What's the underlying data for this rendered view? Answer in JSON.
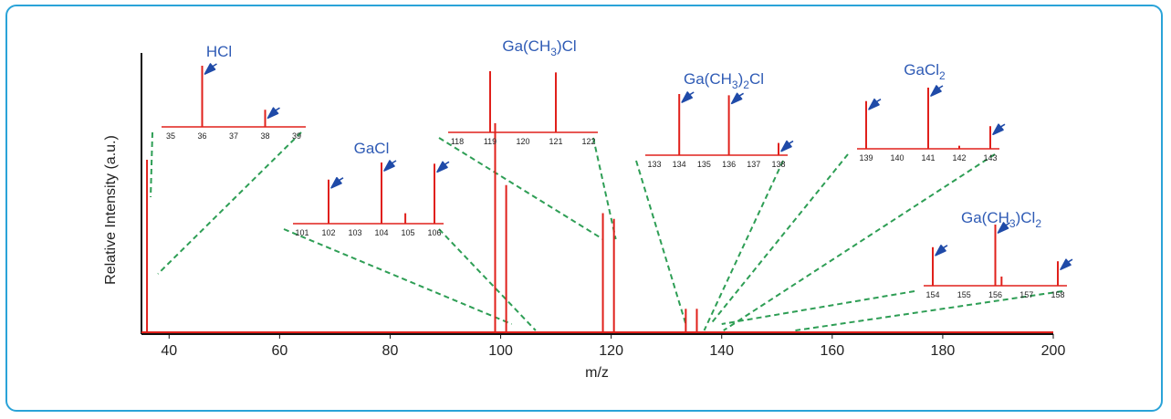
{
  "chart_data": {
    "type": "line",
    "xlabel": "m/z",
    "ylabel": "Relative Intensity (a.u.)",
    "xlim": [
      35,
      200
    ],
    "xticks": [
      40,
      60,
      80,
      100,
      120,
      140,
      160,
      180,
      200
    ],
    "peaks": [
      {
        "x": 36,
        "y": 0.62
      },
      {
        "x": 99,
        "y": 0.75
      },
      {
        "x": 101,
        "y": 0.53
      },
      {
        "x": 118.5,
        "y": 0.43
      },
      {
        "x": 120.5,
        "y": 0.41
      },
      {
        "x": 133.5,
        "y": 0.09
      },
      {
        "x": 135.5,
        "y": 0.09
      }
    ],
    "insets": [
      {
        "label": "HCl",
        "ticks": [
          "35",
          "36",
          "37",
          "38",
          "39"
        ],
        "peaks": [
          {
            "x": 36,
            "y": 1.0,
            "arrow": true
          },
          {
            "x": 38,
            "y": 0.28,
            "arrow": true
          }
        ],
        "zoom_mz": [
          36,
          36
        ]
      },
      {
        "label": "GaCl",
        "ticks": [
          "101",
          "102",
          "103",
          "104",
          "105",
          "106"
        ],
        "peaks": [
          {
            "x": 102,
            "y": 0.72,
            "arrow": true
          },
          {
            "x": 104,
            "y": 1.0,
            "arrow": true
          },
          {
            "x": 104.9,
            "y": 0.17,
            "arrow": false
          },
          {
            "x": 106,
            "y": 0.98,
            "arrow": true
          }
        ],
        "zoom_mz": [
          102,
          106
        ]
      },
      {
        "label_parts": [
          [
            "Ga(CH",
            "n"
          ],
          [
            "3",
            "sub"
          ],
          [
            ")Cl",
            "n"
          ]
        ],
        "ticks": [
          "118",
          "119",
          "120",
          "121",
          "122"
        ],
        "peaks": [
          {
            "x": 119,
            "y": 1.0,
            "arrow": false
          },
          {
            "x": 121,
            "y": 0.98,
            "arrow": false
          }
        ],
        "zoom_mz": [
          118.5,
          120.5
        ]
      },
      {
        "label_parts": [
          [
            "Ga(CH",
            "n"
          ],
          [
            "3",
            "sub"
          ],
          [
            ")",
            "n"
          ],
          [
            "2",
            "sub"
          ],
          [
            "Cl",
            "n"
          ]
        ],
        "ticks": [
          "133",
          "134",
          "135",
          "136",
          "137",
          "138"
        ],
        "peaks": [
          {
            "x": 134,
            "y": 1.0,
            "arrow": true
          },
          {
            "x": 136,
            "y": 0.98,
            "arrow": true
          },
          {
            "x": 138,
            "y": 0.2,
            "arrow": true
          }
        ],
        "zoom_mz": [
          133.5,
          136.5
        ]
      },
      {
        "label_parts": [
          [
            "GaCl",
            "n"
          ],
          [
            "2",
            "sub"
          ]
        ],
        "ticks": [
          "139",
          "140",
          "141",
          "142",
          "143"
        ],
        "peaks": [
          {
            "x": 139,
            "y": 0.78,
            "arrow": true
          },
          {
            "x": 141,
            "y": 1.0,
            "arrow": true
          },
          {
            "x": 142,
            "y": 0.05,
            "arrow": false
          },
          {
            "x": 143,
            "y": 0.37,
            "arrow": true
          }
        ],
        "zoom_mz": [
          138,
          140
        ]
      },
      {
        "label_parts": [
          [
            "Ga(CH",
            "n"
          ],
          [
            "3",
            "sub"
          ],
          [
            ")Cl",
            "n"
          ],
          [
            "2",
            "sub"
          ]
        ],
        "ticks": [
          "154",
          "155",
          "156",
          "157",
          "158"
        ],
        "peaks": [
          {
            "x": 154,
            "y": 0.63,
            "arrow": true
          },
          {
            "x": 156,
            "y": 1.0,
            "arrow": true
          },
          {
            "x": 156.2,
            "y": 0.15,
            "arrow": false
          },
          {
            "x": 158,
            "y": 0.4,
            "arrow": true
          }
        ],
        "zoom_mz": [
          140,
          153
        ]
      }
    ]
  },
  "colors": {
    "frame": "#2aa3d8",
    "peaks": "#e0201b",
    "zoom_lines": "#2e9e55",
    "labels": "#2f5bb5",
    "arrows": "#1f4aa8",
    "axis": "#111111"
  }
}
